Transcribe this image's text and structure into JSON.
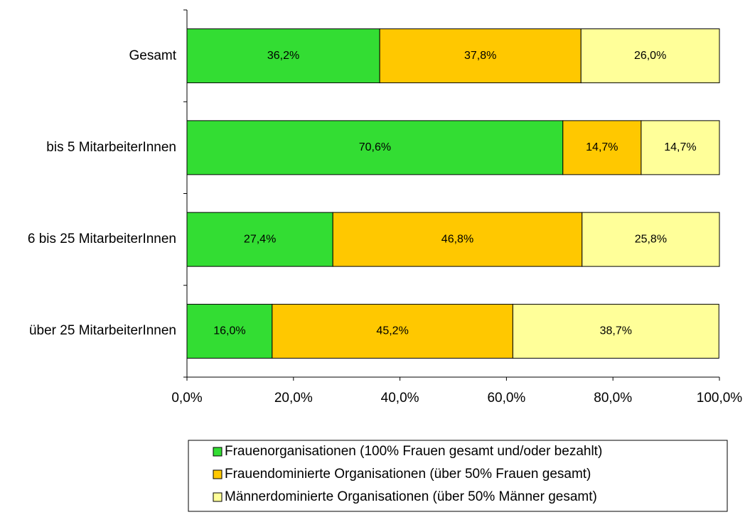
{
  "chart_data": {
    "type": "bar_stacked_horizontal",
    "categories": [
      "Gesamt",
      "bis 5 MitarbeiterInnen",
      "6 bis 25 MitarbeiterInnen",
      "über 25 MitarbeiterInnen"
    ],
    "series": [
      {
        "name": "Frauenorganisationen (100% Frauen gesamt und/oder bezahlt)",
        "color": "#33dd33",
        "values": [
          36.2,
          70.6,
          27.4,
          16.0
        ],
        "value_labels": [
          "36,2%",
          "70,6%",
          "27,4%",
          "16,0%"
        ]
      },
      {
        "name": "Frauendominierte Organisationen (über 50% Frauen gesamt)",
        "color": "#ffc800",
        "values": [
          37.8,
          14.7,
          46.8,
          45.2
        ],
        "value_labels": [
          "37,8%",
          "14,7%",
          "46,8%",
          "45,2%"
        ]
      },
      {
        "name": "Männerdominierte Organisationen (über 50% Männer gesamt)",
        "color": "#ffff99",
        "values": [
          26.0,
          14.7,
          25.8,
          38.7
        ],
        "value_labels": [
          "26,0%",
          "14,7%",
          "25,8%",
          "38,7%"
        ]
      }
    ],
    "xlim": [
      0,
      100
    ],
    "xticks": [
      {
        "value": 0,
        "label": "0,0%"
      },
      {
        "value": 20,
        "label": "20,0%"
      },
      {
        "value": 40,
        "label": "40,0%"
      },
      {
        "value": 60,
        "label": "60,0%"
      },
      {
        "value": 80,
        "label": "80,0%"
      },
      {
        "value": 100,
        "label": "100,0%"
      }
    ],
    "legend": "bottom"
  }
}
